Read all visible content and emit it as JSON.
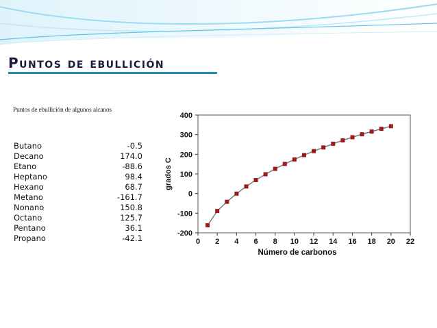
{
  "slide": {
    "title": "Puntos de ebullición",
    "table_caption": "Puntos de ebullición de algunos alcanos",
    "colors": {
      "accent": "#1f8fb8",
      "header_light": "#d9f1fb",
      "header_mid": "#7fd1ef",
      "marker": "#9b1b1b",
      "line": "#7a7a7a"
    }
  },
  "table": {
    "rows": [
      {
        "name": "Butano",
        "value": "-0.5"
      },
      {
        "name": "Decano",
        "value": "174.0"
      },
      {
        "name": "Etano",
        "value": "-88.6"
      },
      {
        "name": "Heptano",
        "value": "98.4"
      },
      {
        "name": "Hexano",
        "value": "68.7"
      },
      {
        "name": "Metano",
        "value": "-161.7"
      },
      {
        "name": "Nonano",
        "value": "150.8"
      },
      {
        "name": "Octano",
        "value": "125.7"
      },
      {
        "name": "Pentano",
        "value": "36.1"
      },
      {
        "name": "Propano",
        "value": "-42.1"
      }
    ]
  },
  "chart_data": {
    "type": "line",
    "title": "",
    "xlabel": "Número de carbonos",
    "ylabel": "grados C",
    "xlim": [
      0,
      22
    ],
    "ylim": [
      -200,
      400
    ],
    "xticks": [
      0,
      2,
      4,
      6,
      8,
      10,
      12,
      14,
      16,
      18,
      20,
      22
    ],
    "yticks": [
      -200,
      -100,
      0,
      100,
      200,
      300,
      400
    ],
    "grid": false,
    "legend": "none",
    "series": [
      {
        "x": [
          1,
          2,
          3,
          4,
          5,
          6,
          7,
          8,
          9,
          10,
          11,
          12,
          13,
          14,
          15,
          16,
          17,
          18,
          19,
          20
        ],
        "y": [
          -161.7,
          -88.6,
          -42.1,
          -0.5,
          36.1,
          68.7,
          98.4,
          125.7,
          150.8,
          174.0,
          196,
          216,
          235,
          254,
          271,
          287,
          302,
          316,
          330,
          343
        ]
      }
    ]
  }
}
